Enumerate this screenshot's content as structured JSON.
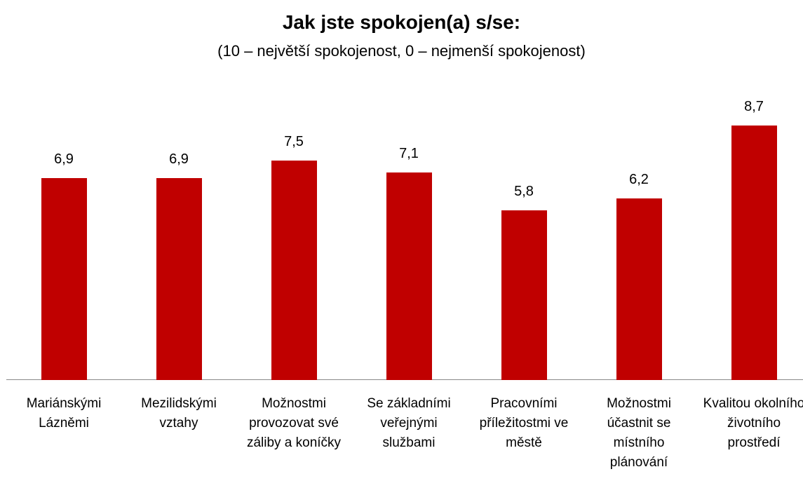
{
  "chart_data": {
    "type": "bar",
    "title": "Jak jste spokojen(a) s/se:",
    "subtitle": "(10 – největší spokojenost, 0 – nejmenší spokojenost)",
    "categories": [
      "Mariánskými Lázněmi",
      "Mezilidskými vztahy",
      "Možnostmi provozovat své záliby a koníčky",
      "Se základními veřejnými službami",
      "Pracovními příležitostmi ve městě",
      "Možnostmi účastnit se místního plánování",
      "Kvalitou okolního životního prostředí"
    ],
    "values": [
      6.9,
      6.9,
      7.5,
      7.1,
      5.8,
      6.2,
      8.7
    ],
    "value_labels": [
      "6,9",
      "6,9",
      "7,5",
      "7,1",
      "5,8",
      "6,2",
      "8,7"
    ],
    "color": "#c00000"
  }
}
